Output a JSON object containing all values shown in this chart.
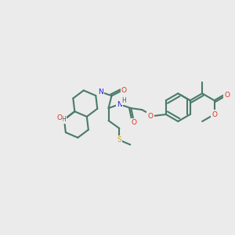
{
  "bg_color": "#ebebeb",
  "bond_color": "#4a7a6a",
  "bond_width": 1.5,
  "figsize": [
    3.0,
    3.0
  ],
  "dpi": 100,
  "atom_colors": {
    "O": "#e03020",
    "N": "#2020e0",
    "S": "#c8a000",
    "H": "#000000",
    "C": "#000000"
  }
}
